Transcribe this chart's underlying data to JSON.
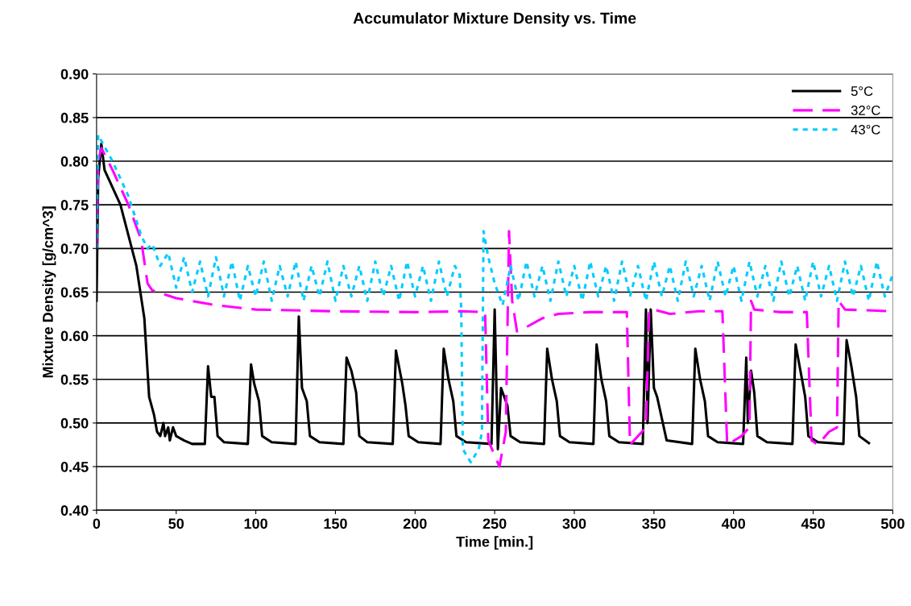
{
  "chart_data": {
    "type": "line",
    "title": "Accumulator Mixture Density vs. Time",
    "xlabel": "Time [min.]",
    "ylabel": "Mixture Density [g/cm^3]",
    "xlim": [
      0,
      500
    ],
    "xticks": [
      0,
      50,
      100,
      150,
      200,
      250,
      300,
      350,
      400,
      450,
      500
    ],
    "ylim": [
      0.4,
      0.9
    ],
    "yticks": [
      {
        "value": 0.4,
        "label": "0.40"
      },
      {
        "value": 0.45,
        "label": "0.45"
      },
      {
        "value": 0.5,
        "label": "0.50"
      },
      {
        "value": 0.55,
        "label": "0.55"
      },
      {
        "value": 0.6,
        "label": "0.60"
      },
      {
        "value": 0.65,
        "label": "0.65"
      },
      {
        "value": 0.7,
        "label": "0.70"
      },
      {
        "value": 0.75,
        "label": "0.75"
      },
      {
        "value": 0.8,
        "label": "0.80"
      },
      {
        "value": 0.85,
        "label": "0.85"
      },
      {
        "value": 0.9,
        "label": "0.90"
      }
    ],
    "grid": "y",
    "legend": "top right",
    "series": [
      {
        "name": "5°C",
        "color": "#000000",
        "line_style": "solid",
        "x": [
          0,
          1,
          3,
          5,
          15,
          25,
          30,
          33,
          36,
          38,
          40,
          42,
          43,
          45,
          46,
          48,
          50,
          55,
          60,
          68,
          70,
          72,
          74,
          76,
          80,
          95,
          97,
          99,
          102,
          104,
          110,
          125,
          127,
          129,
          132,
          134,
          140,
          155,
          157,
          160,
          163,
          165,
          170,
          186,
          188,
          192,
          194,
          196,
          202,
          216,
          218,
          221,
          224,
          226,
          232,
          248,
          250,
          252,
          254,
          256,
          258,
          260,
          266,
          281,
          283,
          286,
          289,
          291,
          297,
          312,
          314,
          317,
          320,
          322,
          328,
          343,
          345,
          346,
          348,
          350,
          352,
          358,
          374,
          376,
          379,
          382,
          384,
          390,
          406,
          408,
          409,
          411,
          413,
          415,
          421,
          437,
          439,
          442,
          445,
          447,
          453,
          469,
          471,
          474,
          477,
          479,
          485
        ],
        "values": [
          0.64,
          0.78,
          0.82,
          0.79,
          0.75,
          0.68,
          0.62,
          0.53,
          0.51,
          0.49,
          0.485,
          0.5,
          0.485,
          0.495,
          0.48,
          0.495,
          0.485,
          0.48,
          0.476,
          0.476,
          0.565,
          0.53,
          0.53,
          0.485,
          0.478,
          0.476,
          0.567,
          0.545,
          0.525,
          0.485,
          0.478,
          0.476,
          0.622,
          0.54,
          0.525,
          0.485,
          0.478,
          0.476,
          0.575,
          0.56,
          0.535,
          0.485,
          0.478,
          0.476,
          0.583,
          0.545,
          0.52,
          0.485,
          0.478,
          0.476,
          0.585,
          0.55,
          0.525,
          0.485,
          0.478,
          0.476,
          0.63,
          0.47,
          0.54,
          0.53,
          0.52,
          0.485,
          0.478,
          0.476,
          0.585,
          0.55,
          0.525,
          0.485,
          0.478,
          0.476,
          0.59,
          0.55,
          0.525,
          0.485,
          0.478,
          0.476,
          0.63,
          0.5,
          0.63,
          0.54,
          0.53,
          0.48,
          0.476,
          0.585,
          0.55,
          0.525,
          0.485,
          0.478,
          0.476,
          0.575,
          0.5,
          0.56,
          0.535,
          0.485,
          0.478,
          0.476,
          0.59,
          0.56,
          0.53,
          0.485,
          0.478,
          0.476,
          0.595,
          0.565,
          0.53,
          0.485,
          0.477
        ]
      },
      {
        "name": "32°C",
        "color": "#ff00ff",
        "line_style": "dashed",
        "x": [
          0,
          1,
          3,
          10,
          20,
          28,
          32,
          35,
          50,
          75,
          100,
          150,
          200,
          230,
          244,
          246,
          253,
          257,
          259,
          261,
          264,
          270,
          280,
          290,
          310,
          333,
          335,
          340,
          345,
          347,
          350,
          360,
          378,
          393,
          396,
          405,
          410,
          411,
          413,
          430,
          446,
          449,
          453,
          460,
          465,
          466,
          470,
          500
        ],
        "values": [
          0.7,
          0.8,
          0.815,
          0.79,
          0.75,
          0.71,
          0.66,
          0.652,
          0.643,
          0.635,
          0.63,
          0.628,
          0.627,
          0.628,
          0.627,
          0.48,
          0.45,
          0.49,
          0.72,
          0.64,
          0.605,
          0.61,
          0.62,
          0.625,
          0.627,
          0.627,
          0.475,
          0.485,
          0.495,
          0.63,
          0.63,
          0.625,
          0.628,
          0.628,
          0.475,
          0.485,
          0.495,
          0.64,
          0.63,
          0.627,
          0.627,
          0.48,
          0.475,
          0.49,
          0.495,
          0.64,
          0.63,
          0.628
        ]
      },
      {
        "name": "43°C",
        "color": "#00ccff",
        "line_style": "dotted",
        "x": [
          0,
          1,
          10,
          20,
          28,
          32,
          35,
          40,
          45,
          50,
          55,
          60,
          65,
          70,
          75,
          80,
          85,
          90,
          95,
          100,
          105,
          110,
          115,
          120,
          125,
          130,
          135,
          140,
          145,
          150,
          155,
          160,
          165,
          170,
          175,
          180,
          185,
          190,
          195,
          200,
          205,
          210,
          215,
          220,
          225,
          228,
          229,
          230,
          235,
          240,
          242,
          243,
          246,
          250,
          255,
          260,
          265,
          270,
          275,
          280,
          285,
          290,
          295,
          300,
          305,
          310,
          315,
          320,
          325,
          330,
          335,
          340,
          345,
          350,
          355,
          360,
          365,
          370,
          375,
          380,
          385,
          390,
          395,
          400,
          405,
          410,
          415,
          420,
          425,
          430,
          435,
          440,
          445,
          450,
          455,
          460,
          465,
          470,
          475,
          480,
          485,
          490,
          495,
          500
        ],
        "values": [
          0.7,
          0.83,
          0.8,
          0.76,
          0.715,
          0.7,
          0.705,
          0.68,
          0.695,
          0.655,
          0.69,
          0.65,
          0.685,
          0.645,
          0.69,
          0.645,
          0.685,
          0.64,
          0.68,
          0.645,
          0.685,
          0.64,
          0.68,
          0.645,
          0.685,
          0.64,
          0.68,
          0.645,
          0.685,
          0.64,
          0.68,
          0.645,
          0.68,
          0.64,
          0.685,
          0.645,
          0.68,
          0.64,
          0.685,
          0.645,
          0.68,
          0.64,
          0.685,
          0.645,
          0.68,
          0.67,
          0.63,
          0.47,
          0.455,
          0.47,
          0.49,
          0.72,
          0.69,
          0.66,
          0.635,
          0.68,
          0.64,
          0.685,
          0.645,
          0.68,
          0.64,
          0.685,
          0.645,
          0.68,
          0.64,
          0.685,
          0.645,
          0.68,
          0.64,
          0.685,
          0.645,
          0.68,
          0.64,
          0.685,
          0.645,
          0.68,
          0.64,
          0.685,
          0.645,
          0.68,
          0.64,
          0.685,
          0.645,
          0.68,
          0.64,
          0.685,
          0.645,
          0.68,
          0.64,
          0.685,
          0.645,
          0.68,
          0.64,
          0.685,
          0.645,
          0.68,
          0.64,
          0.685,
          0.645,
          0.68,
          0.64,
          0.685,
          0.645,
          0.67
        ]
      }
    ]
  }
}
